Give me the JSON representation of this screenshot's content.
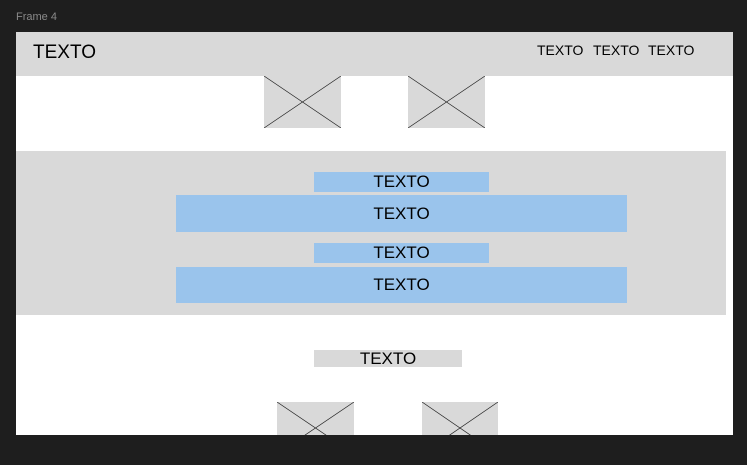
{
  "frame": {
    "title": "Frame 4"
  },
  "header": {
    "logo_text": "TEXTO",
    "nav": [
      "TEXTO",
      "TEXTO",
      "TEXTO"
    ]
  },
  "band": {
    "label_1": "TEXTO",
    "bar_1": "TEXTO",
    "label_2": "TEXTO",
    "bar_2": "TEXTO"
  },
  "footer": {
    "label": "TEXTO"
  },
  "colors": {
    "canvas": "#1e1e1e",
    "placeholder": "#d9d9d9",
    "accent": "#9ac4ec"
  },
  "icons": [
    "image-placeholder-icon"
  ]
}
